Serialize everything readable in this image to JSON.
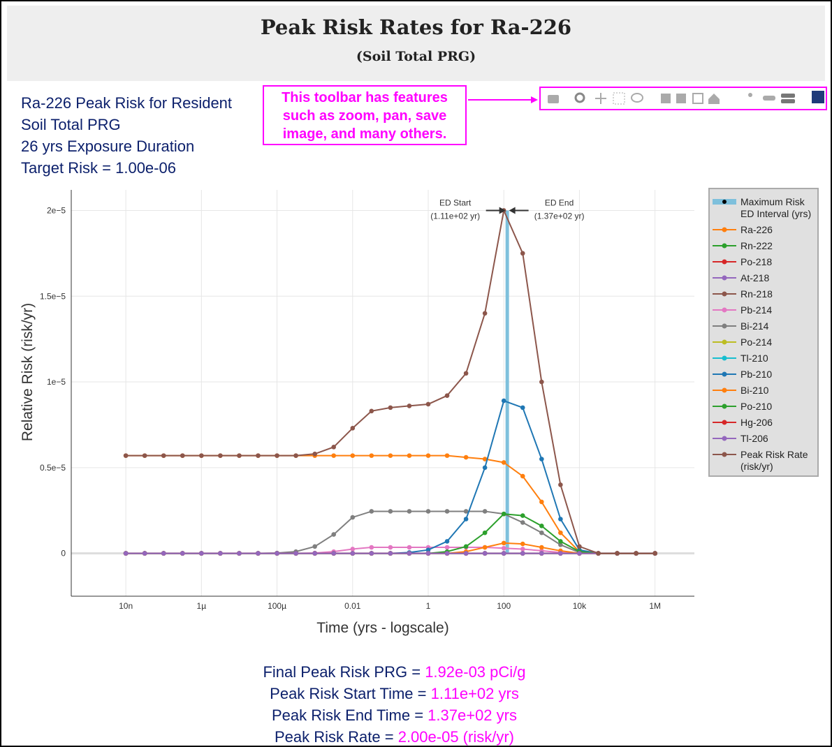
{
  "header": {
    "title": "Peak Risk Rates for Ra-226",
    "subtitle": "(Soil Total PRG)"
  },
  "info": [
    "Ra-226 Peak Risk for Resident",
    "Soil Total PRG",
    "26 yrs Exposure Duration",
    "Target Risk = 1.00e-06"
  ],
  "callout": "This toolbar has features such as zoom, pan, save image, and many others.",
  "chart_data": {
    "type": "line",
    "x_label": "Time (yrs - logscale)",
    "y_label": "Relative Risk (risk/yr)",
    "log_x": true,
    "grid": true,
    "legend": "right",
    "xlim": [
      3.6e-10,
      11000000.0
    ],
    "ylim": [
      -2.5e-06,
      2.12e-05
    ],
    "xticks": [
      {
        "value": 1e-08,
        "label": "10n"
      },
      {
        "value": 1e-06,
        "label": "1µ"
      },
      {
        "value": 0.0001,
        "label": "100µ"
      },
      0.01,
      1,
      100,
      {
        "value": 10000,
        "label": "10k"
      },
      {
        "value": 1000000,
        "label": "1M"
      }
    ],
    "yticks": [
      0,
      {
        "value": 5e-06,
        "label": "0.5e−5"
      },
      {
        "value": 1e-05,
        "label": "1e−5"
      },
      {
        "value": 1.5e-05,
        "label": "1.5e−5"
      },
      {
        "value": 2e-05,
        "label": "2e−5"
      }
    ],
    "ed_interval": {
      "name": "Maximum Risk ED Interval (yrs)",
      "color": "#7ec0dc",
      "start": 111,
      "end": 137,
      "start_label": "ED Start",
      "start_value": "(1.11e+02 yr)",
      "end_label": "ED End",
      "end_value": "(1.37e+02 yr)"
    },
    "x": [
      1e-08,
      3.16e-08,
      1e-07,
      3.16e-07,
      1e-06,
      3.16e-06,
      1e-05,
      3.16e-05,
      0.0001,
      0.000316,
      0.001,
      0.00316,
      0.01,
      0.0316,
      0.1,
      0.316,
      1,
      3.16,
      10,
      31.6,
      100,
      316,
      1000,
      3160,
      10000,
      31600,
      100000,
      316000,
      1000000
    ],
    "series": [
      {
        "name": "Ra-226",
        "color": "#ff7f0e",
        "values": [
          5.7e-06,
          5.7e-06,
          5.7e-06,
          5.7e-06,
          5.7e-06,
          5.7e-06,
          5.7e-06,
          5.7e-06,
          5.7e-06,
          5.7e-06,
          5.7e-06,
          5.7e-06,
          5.7e-06,
          5.7e-06,
          5.7e-06,
          5.7e-06,
          5.7e-06,
          5.7e-06,
          5.6e-06,
          5.5e-06,
          5.3e-06,
          4.5e-06,
          3e-06,
          1.2e-06,
          1e-07,
          0,
          0,
          0,
          0
        ]
      },
      {
        "name": "Rn-222",
        "color": "#2ca02c",
        "values": [
          0,
          0,
          0,
          0,
          0,
          0,
          0,
          0,
          0,
          0,
          0,
          0,
          0,
          0,
          0,
          0,
          0,
          0,
          0,
          0,
          0,
          0,
          0,
          0,
          0,
          0,
          0,
          0,
          0
        ]
      },
      {
        "name": "Po-218",
        "color": "#d62728",
        "values": [
          0,
          0,
          0,
          0,
          0,
          0,
          0,
          0,
          0,
          0,
          0,
          0,
          0,
          0,
          0,
          0,
          0,
          0,
          0,
          0,
          0,
          0,
          0,
          0,
          0,
          0,
          0,
          0,
          0
        ]
      },
      {
        "name": "At-218",
        "color": "#9467bd",
        "values": [
          0,
          0,
          0,
          0,
          0,
          0,
          0,
          0,
          0,
          0,
          0,
          0,
          0,
          0,
          0,
          0,
          0,
          0,
          0,
          0,
          0,
          0,
          0,
          0,
          0,
          0,
          0,
          0,
          0
        ]
      },
      {
        "name": "Rn-218",
        "color": "#8c564b",
        "values": [
          0,
          0,
          0,
          0,
          0,
          0,
          0,
          0,
          0,
          0,
          0,
          0,
          0,
          0,
          0,
          0,
          0,
          0,
          0,
          0,
          0,
          0,
          0,
          0,
          0,
          0,
          0,
          0,
          0
        ]
      },
      {
        "name": "Pb-214",
        "color": "#e377c2",
        "values": [
          0,
          0,
          0,
          0,
          0,
          0,
          0,
          0,
          0,
          0,
          2e-08,
          1e-07,
          2.5e-07,
          3.5e-07,
          3.5e-07,
          3.5e-07,
          3.5e-07,
          3.5e-07,
          3.5e-07,
          3.5e-07,
          3e-07,
          2.5e-07,
          1.5e-07,
          5e-08,
          0,
          0,
          0,
          0,
          0
        ]
      },
      {
        "name": "Bi-214",
        "color": "#7f7f7f",
        "values": [
          0,
          0,
          0,
          0,
          0,
          0,
          0,
          0,
          2e-08,
          1e-07,
          4e-07,
          1.1e-06,
          2.1e-06,
          2.45e-06,
          2.45e-06,
          2.45e-06,
          2.45e-06,
          2.45e-06,
          2.45e-06,
          2.45e-06,
          2.3e-06,
          1.8e-06,
          1.2e-06,
          5e-07,
          5e-08,
          0,
          0,
          0,
          0
        ]
      },
      {
        "name": "Po-214",
        "color": "#bcbd22",
        "values": [
          0,
          0,
          0,
          0,
          0,
          0,
          0,
          0,
          0,
          0,
          0,
          0,
          0,
          0,
          0,
          0,
          0,
          0,
          0,
          0,
          0,
          0,
          0,
          0,
          0,
          0,
          0,
          0,
          0
        ]
      },
      {
        "name": "Tl-210",
        "color": "#17becf",
        "values": [
          0,
          0,
          0,
          0,
          0,
          0,
          0,
          0,
          0,
          0,
          0,
          0,
          0,
          0,
          0,
          0,
          0,
          0,
          0,
          0,
          0,
          0,
          0,
          0,
          0,
          0,
          0,
          0,
          0
        ]
      },
      {
        "name": "Pb-210",
        "color": "#1f77b4",
        "values": [
          0,
          0,
          0,
          0,
          0,
          0,
          0,
          0,
          0,
          0,
          0,
          0,
          0,
          0,
          0,
          5e-08,
          2e-07,
          7e-07,
          2e-06,
          5e-06,
          8.9e-06,
          8.5e-06,
          5.5e-06,
          2e-06,
          2e-07,
          0,
          0,
          0,
          0
        ]
      },
      {
        "name": "Bi-210",
        "color": "#ff7f0e",
        "values": [
          0,
          0,
          0,
          0,
          0,
          0,
          0,
          0,
          0,
          0,
          0,
          0,
          0,
          0,
          0,
          0,
          0,
          0,
          1e-07,
          3.5e-07,
          6e-07,
          5.5e-07,
          3.5e-07,
          1.5e-07,
          0,
          0,
          0,
          0,
          0
        ]
      },
      {
        "name": "Po-210",
        "color": "#2ca02c",
        "values": [
          0,
          0,
          0,
          0,
          0,
          0,
          0,
          0,
          0,
          0,
          0,
          0,
          0,
          0,
          0,
          0,
          0,
          1e-07,
          4e-07,
          1.2e-06,
          2.3e-06,
          2.2e-06,
          1.6e-06,
          7e-07,
          1e-07,
          0,
          0,
          0,
          0
        ]
      },
      {
        "name": "Hg-206",
        "color": "#d62728",
        "values": [
          0,
          0,
          0,
          0,
          0,
          0,
          0,
          0,
          0,
          0,
          0,
          0,
          0,
          0,
          0,
          0,
          0,
          0,
          0,
          0,
          0,
          0,
          0,
          0,
          0,
          0,
          0,
          0,
          0
        ]
      },
      {
        "name": "Tl-206",
        "color": "#9467bd",
        "values": [
          0,
          0,
          0,
          0,
          0,
          0,
          0,
          0,
          0,
          0,
          0,
          0,
          0,
          0,
          0,
          0,
          0,
          0,
          0,
          0,
          0,
          0,
          0,
          0,
          0,
          0,
          0,
          0,
          0
        ]
      },
      {
        "name": "Peak Risk Rate (risk/yr)",
        "color": "#8c564b",
        "values": [
          5.7e-06,
          5.7e-06,
          5.7e-06,
          5.7e-06,
          5.7e-06,
          5.7e-06,
          5.7e-06,
          5.7e-06,
          5.7e-06,
          5.7e-06,
          5.8e-06,
          6.2e-06,
          7.3e-06,
          8.3e-06,
          8.5e-06,
          8.6e-06,
          8.7e-06,
          9.2e-06,
          1.05e-05,
          1.4e-05,
          2e-05,
          1.75e-05,
          1e-05,
          4e-06,
          4e-07,
          0,
          0,
          0,
          0
        ]
      }
    ]
  },
  "summary": [
    {
      "label": "Final Peak Risk PRG =",
      "value": "1.92e-03 pCi/g"
    },
    {
      "label": "Peak Risk Start Time =",
      "value": "1.11e+02 yrs"
    },
    {
      "label": "Peak Risk End Time =",
      "value": "1.37e+02 yrs"
    },
    {
      "label": "Peak Risk Rate =",
      "value": "2.00e-05 (risk/yr)"
    }
  ]
}
